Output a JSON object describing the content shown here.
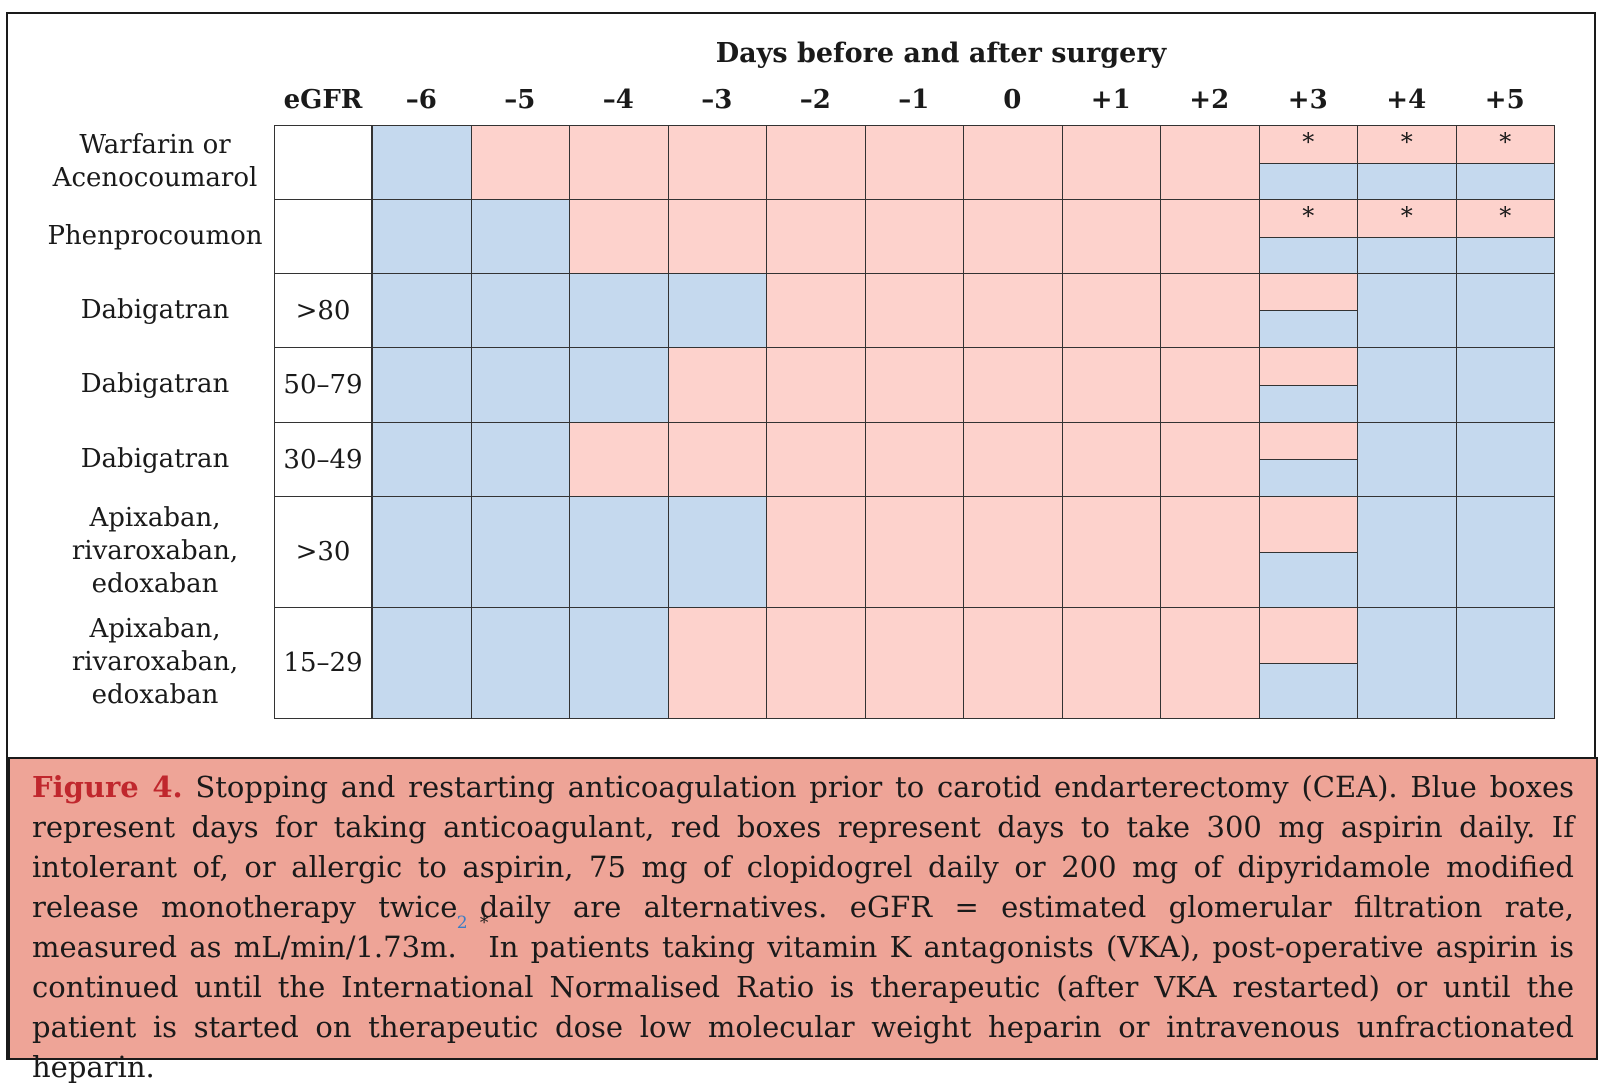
{
  "figure": {
    "days_title": "Days before and after surgery",
    "egfr_header": "eGFR",
    "days": [
      "–6",
      "–5",
      "–4",
      "–3",
      "–2",
      "–1",
      "0",
      "+1",
      "+2",
      "+3",
      "+4",
      "+5"
    ],
    "star": "*",
    "rows": [
      {
        "label": "Warfarin or\nAcenocoumarol",
        "egfr": "",
        "cells": [
          "B",
          "R",
          "R",
          "R",
          "R",
          "R",
          "R",
          "R",
          "R",
          "S",
          "S",
          "S"
        ]
      },
      {
        "label": "Phenprocoumon",
        "egfr": "",
        "cells": [
          "B",
          "B",
          "R",
          "R",
          "R",
          "R",
          "R",
          "R",
          "R",
          "S",
          "S",
          "S"
        ]
      },
      {
        "label": "Dabigatran",
        "egfr": ">80",
        "cells": [
          "B",
          "B",
          "B",
          "B",
          "R",
          "R",
          "R",
          "R",
          "R",
          "H",
          "B",
          "B"
        ]
      },
      {
        "label": "Dabigatran",
        "egfr": "50–79",
        "cells": [
          "B",
          "B",
          "B",
          "R",
          "R",
          "R",
          "R",
          "R",
          "R",
          "H",
          "B",
          "B"
        ]
      },
      {
        "label": "Dabigatran",
        "egfr": "30–49",
        "cells": [
          "B",
          "B",
          "R",
          "R",
          "R",
          "R",
          "R",
          "R",
          "R",
          "H",
          "B",
          "B"
        ]
      },
      {
        "label": "Apixaban,\nrivaroxaban,\nedoxaban",
        "egfr": ">30",
        "cells": [
          "B",
          "B",
          "B",
          "B",
          "R",
          "R",
          "R",
          "R",
          "R",
          "H",
          "B",
          "B"
        ]
      },
      {
        "label": "Apixaban,\nrivaroxaban,\nedoxaban",
        "egfr": "15–29",
        "cells": [
          "B",
          "B",
          "B",
          "R",
          "R",
          "R",
          "R",
          "R",
          "R",
          "H",
          "B",
          "B"
        ]
      }
    ],
    "legend_colors": {
      "blue": "#c5d9ee",
      "red": "#fdd2cc"
    }
  },
  "caption": {
    "label": "Figure 4.",
    "text1": " Stopping and restarting anticoagulation prior to carotid endarterectomy (CEA). Blue boxes represent days for taking anticoagulant, red boxes represent days to take 300 mg aspirin daily. If intolerant of, or allergic to aspirin, 75 mg of clopidogrel daily or 200 mg of dipyridamole modified release monotherapy twice daily are alternatives. eGFR = estimated glomerular filtration rate, measured as mL/min/1.73m.",
    "ref": "2",
    "star": "*",
    "text2": "In patients taking vitamin K antagonists (VKA), post-operative aspirin is continued until the International Normalised Ratio is therapeutic (after VKA restarted) or until the patient is started on therapeutic dose low molecular weight heparin or intravenous unfractionated heparin.",
    "background": "#eea497",
    "label_color": "#c0272d"
  }
}
